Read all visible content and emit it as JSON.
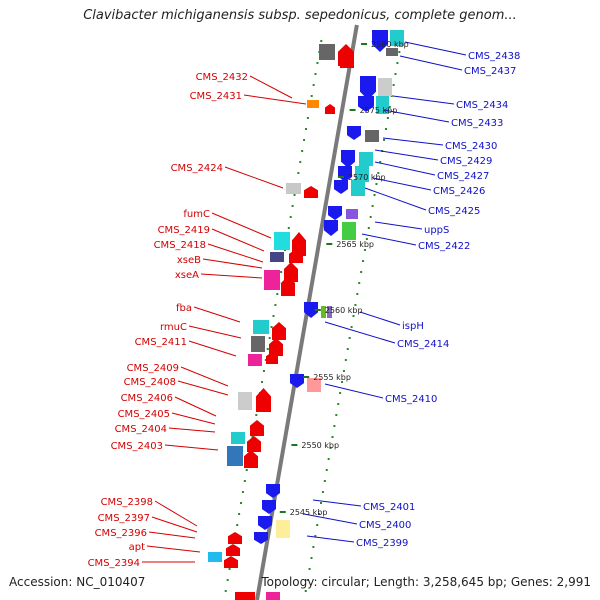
{
  "title": "Clavibacter michiganensis subsp. sepedonicus, complete genom...",
  "footer": {
    "accession": "Accession: NC_010407",
    "stats": "Topology: circular; Length: 3,258,645 bp; Genes: 2,991"
  },
  "colors": {
    "axis": "#7a7a7a",
    "tick_dot": "#2a8a2a",
    "label_red": "#d40000",
    "label_blue": "#1010c8"
  },
  "kbp_ticks": [
    "2580 kbp",
    "2575 kbp",
    "2570 kbp",
    "2565 kbp",
    "2560 kbp",
    "2555 kbp",
    "2550 kbp",
    "2545 kbp"
  ],
  "labels_left": [
    "CMS_2432",
    "CMS_2431",
    "CMS_2424",
    "fumC",
    "CMS_2419",
    "CMS_2418",
    "xseB",
    "xseA",
    "fba",
    "rmuC",
    "CMS_2411",
    "CMS_2409",
    "CMS_2408",
    "CMS_2406",
    "CMS_2405",
    "CMS_2404",
    "CMS_2403",
    "CMS_2398",
    "CMS_2397",
    "CMS_2396",
    "apt",
    "CMS_2394"
  ],
  "labels_right": [
    "CMS_2438",
    "CMS_2437",
    "CMS_2434",
    "CMS_2433",
    "CMS_2430",
    "CMS_2429",
    "CMS_2427",
    "CMS_2426",
    "CMS_2425",
    "uppS",
    "CMS_2422",
    "ispH",
    "CMS_2414",
    "CMS_2410",
    "CMS_2401",
    "CMS_2400",
    "CMS_2399"
  ]
}
